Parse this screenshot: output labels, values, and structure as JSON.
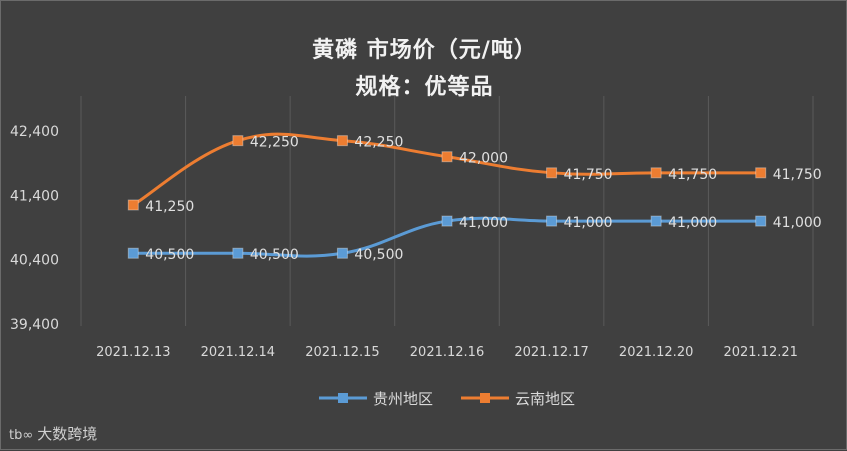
{
  "chart_data": {
    "type": "line",
    "title": "黄磷  市场价（元/吨）",
    "subtitle": "规格：优等品",
    "categories": [
      "2021.12.13",
      "2021.12.14",
      "2021.12.15",
      "2021.12.16",
      "2021.12.17",
      "2021.12.20",
      "2021.12.21"
    ],
    "series": [
      {
        "name": "贵州地区",
        "color": "#5b9bd5",
        "values": [
          40500,
          40500,
          40500,
          41000,
          41000,
          41000,
          41000
        ],
        "labels": [
          "40,500",
          "40,500",
          "40,500",
          "41,000",
          "41,000",
          "41,000",
          "41,000"
        ]
      },
      {
        "name": "云南地区",
        "color": "#ed7d31",
        "values": [
          41250,
          42250,
          42250,
          42000,
          41750,
          41750,
          41750
        ],
        "labels": [
          "41,250",
          "42,250",
          "42,250",
          "42,000",
          "41,750",
          "41,750",
          "41,750"
        ]
      }
    ],
    "yticks": [
      39400,
      40400,
      41400,
      42400
    ],
    "ytick_labels": [
      "39,400",
      "40,400",
      "41,400",
      "42,400"
    ],
    "ylim": [
      39400,
      42400
    ],
    "grid": true,
    "smooth": true,
    "legend_position": "bottom"
  },
  "watermark": {
    "logo": "tb∞",
    "text": "大数跨境"
  }
}
